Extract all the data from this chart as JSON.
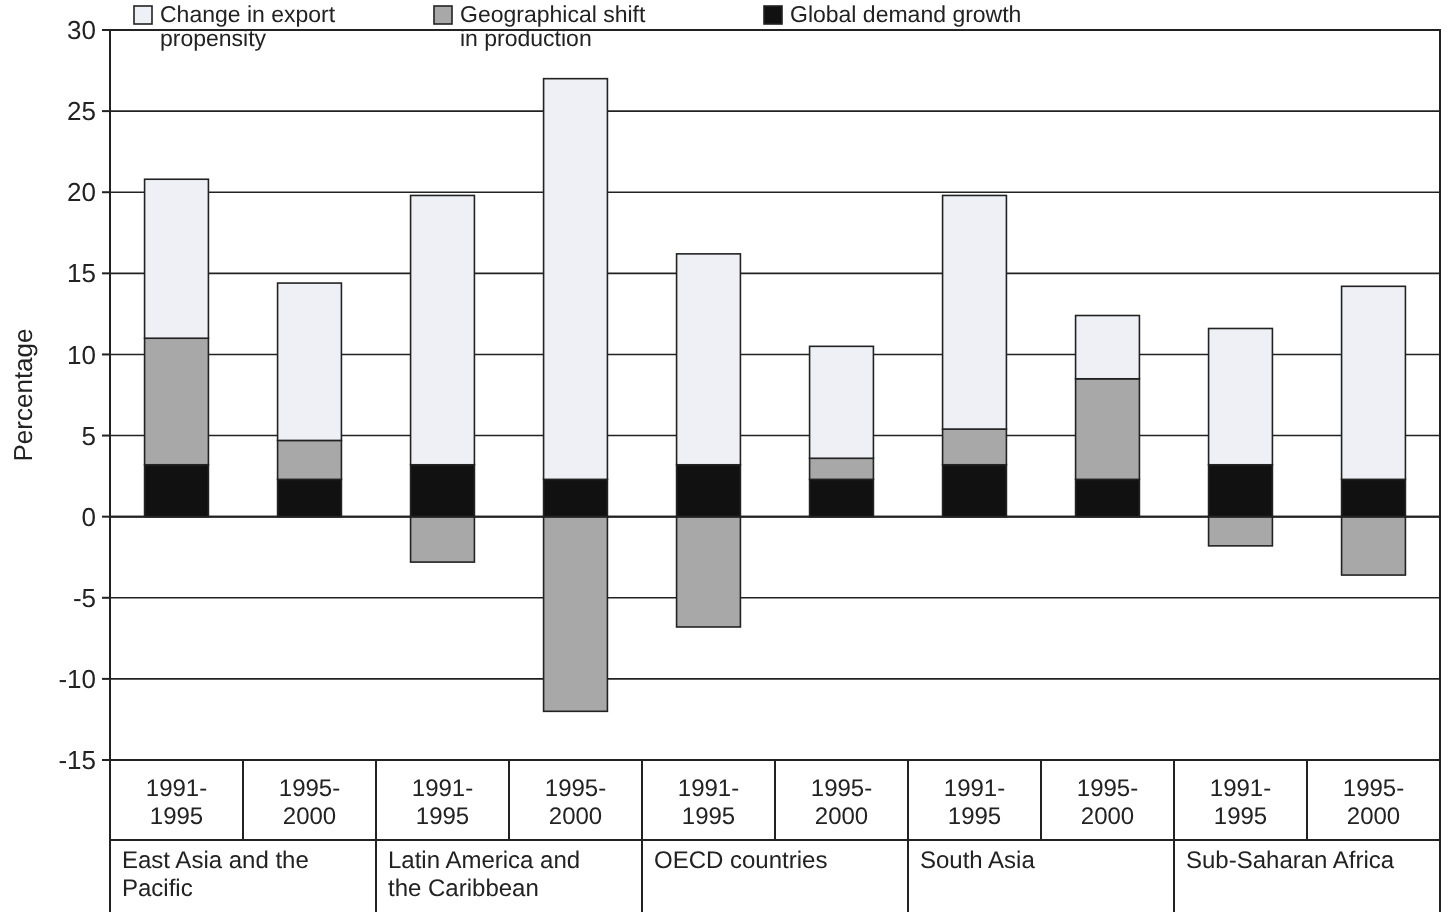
{
  "chart_data": {
    "type": "bar",
    "stacked": true,
    "ylabel": "Percentage",
    "categories": [
      "1991-1995",
      "1995-2000",
      "1991-1995",
      "1995-2000",
      "1991-1995",
      "1995-2000",
      "1991-1995",
      "1995-2000",
      "1991-1995",
      "1995-2000"
    ],
    "series": [
      {
        "name": "Global demand growth",
        "color": "#111111",
        "values": [
          3.2,
          2.3,
          3.2,
          2.3,
          3.2,
          2.3,
          3.2,
          2.3,
          3.2,
          2.3
        ]
      },
      {
        "name": "Geographical shift in production",
        "color": "#a8a8a8",
        "values": [
          7.8,
          2.4,
          -2.8,
          -12,
          -6.8,
          1.3,
          2.2,
          6.2,
          -1.8,
          -3.6
        ]
      },
      {
        "name": "Change in export propensity",
        "color": "#eef0f6",
        "values": [
          9.8,
          9.7,
          16.6,
          24.7,
          13,
          6.9,
          14.4,
          3.9,
          8.4,
          11.9
        ]
      }
    ],
    "annotations": [
      "East Asia and the Pacific",
      "Latin America and the Caribbean",
      "OECD countries",
      "South Asia",
      "Sub-Saharan Africa"
    ],
    "ylim": [
      -15,
      30
    ],
    "yticks": [
      -15,
      -10,
      -5,
      0,
      5,
      10,
      15,
      20,
      25,
      30
    ],
    "grid": "y",
    "legend": "top left"
  }
}
